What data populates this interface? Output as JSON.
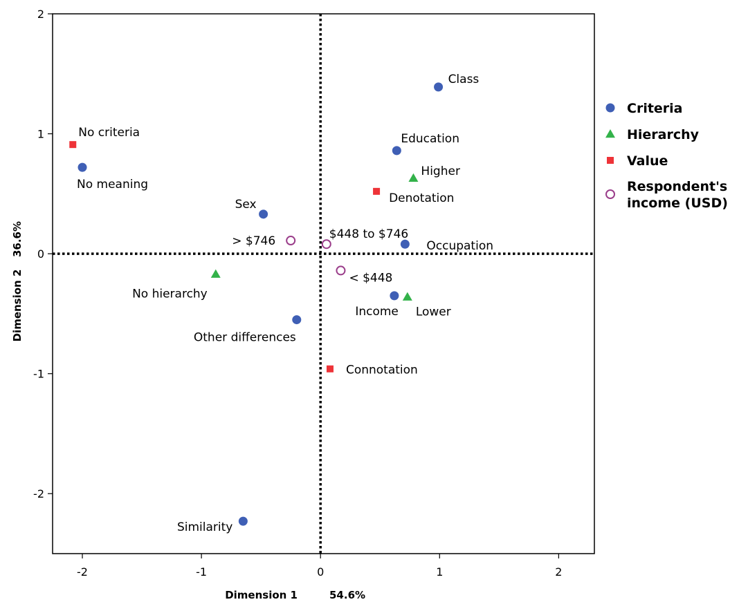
{
  "chart_data": {
    "type": "scatter",
    "title": "",
    "xlabel": "Dimension 1",
    "xlabel_pct": "54.6%",
    "ylabel": "Dimension 2",
    "ylabel_pct": "36.6%",
    "xlim": [
      -2.25,
      2.3
    ],
    "ylim": [
      -2.5,
      2
    ],
    "x_ticks": [
      -2,
      -1,
      0,
      1,
      2
    ],
    "y_ticks": [
      2,
      1,
      0,
      -1,
      -2
    ],
    "x_tick_labels": [
      "-2",
      "-1",
      "0",
      "1",
      "2"
    ],
    "y_tick_labels": [
      "2",
      "1",
      "0",
      "-1",
      "-2"
    ],
    "reference_lines": {
      "x": 0,
      "y": 0,
      "style": "dotted"
    },
    "grid": false,
    "legend_position": "right",
    "series": [
      {
        "name": "Criteria",
        "marker": "circle",
        "color": "#3f5fb5",
        "points": [
          {
            "label": "Class",
            "x": 0.99,
            "y": 1.39
          },
          {
            "label": "Education",
            "x": 0.64,
            "y": 0.86
          },
          {
            "label": "No meaning",
            "x": -2.0,
            "y": 0.72
          },
          {
            "label": "Sex",
            "x": -0.48,
            "y": 0.33
          },
          {
            "label": "Occupation",
            "x": 0.71,
            "y": 0.08
          },
          {
            "label": "Income",
            "x": 0.62,
            "y": -0.35
          },
          {
            "label": "Other differences",
            "x": -0.2,
            "y": -0.55
          },
          {
            "label": "Similarity",
            "x": -0.65,
            "y": -2.23
          }
        ]
      },
      {
        "name": "Hierarchy",
        "marker": "triangle",
        "color": "#33b24a",
        "points": [
          {
            "label": "Higher",
            "x": 0.78,
            "y": 0.63
          },
          {
            "label": "No hierarchy",
            "x": -0.88,
            "y": -0.17
          },
          {
            "label": "Lower",
            "x": 0.73,
            "y": -0.36
          }
        ]
      },
      {
        "name": "Value",
        "marker": "square",
        "color": "#ee3338",
        "points": [
          {
            "label": "No criteria",
            "x": -2.08,
            "y": 0.91
          },
          {
            "label": "Denotation",
            "x": 0.47,
            "y": 0.52
          },
          {
            "label": "Connotation",
            "x": 0.08,
            "y": -0.96
          }
        ]
      },
      {
        "name": "Respondent's income (USD)",
        "legend_lines": [
          "Respondent's",
          "income (USD)"
        ],
        "marker": "open-circle",
        "color": "#9a3d8a",
        "points": [
          {
            "label": "> $746",
            "x": -0.25,
            "y": 0.11
          },
          {
            "label": "$448 to $746",
            "x": 0.05,
            "y": 0.08
          },
          {
            "label": "< $448",
            "x": 0.17,
            "y": -0.14
          }
        ]
      }
    ]
  }
}
